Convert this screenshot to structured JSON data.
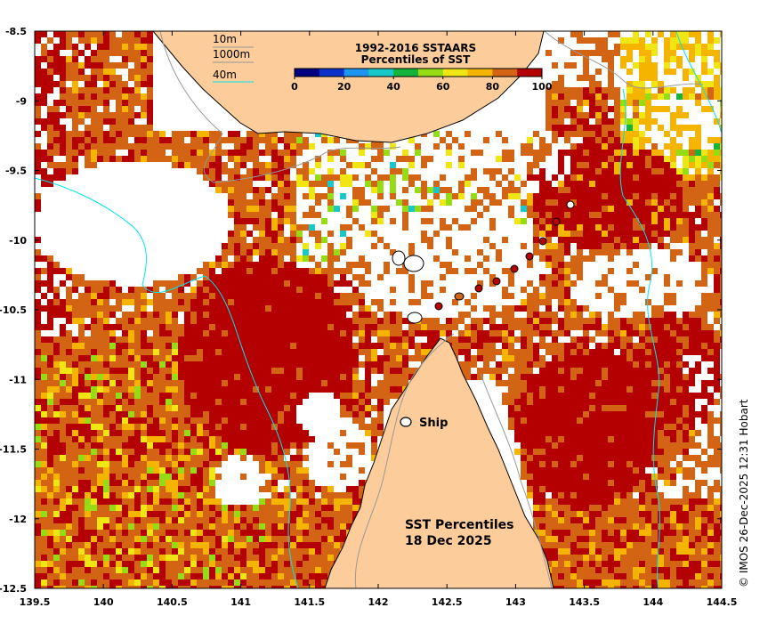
{
  "map": {
    "title_line1": "SST Percentiles",
    "title_line2": "18 Dec 2025",
    "ship_label": "Ship",
    "credit": "© IMOS 26-Dec-2025 12:31 Hobart",
    "x_ticks": [
      "139.5",
      "140",
      "140.5",
      "141",
      "141.5",
      "142",
      "142.5",
      "143",
      "143.5",
      "144",
      "144.5"
    ],
    "y_ticks": [
      "-8.5",
      "-9",
      "-9.5",
      "-10",
      "-10.5",
      "-11",
      "-11.5",
      "-12",
      "-12.5"
    ],
    "lon_range": [
      139.5,
      144.5
    ],
    "lat_range": [
      -12.5,
      -8.5
    ],
    "land_color": "#fccc9a",
    "contour_legend": {
      "items": [
        {
          "label": "10m",
          "color": "#999999"
        },
        {
          "label": "1000m",
          "color": "#999999"
        },
        {
          "label": "40m",
          "color": "#00e5ee"
        }
      ]
    },
    "colorbar": {
      "title_line1": "1992-2016 SSTAARS",
      "title_line2": "Percentiles of SST",
      "labels": [
        "0",
        "20",
        "40",
        "60",
        "80",
        "100"
      ],
      "colors": [
        "#000080",
        "#0a32c8",
        "#1e96f0",
        "#19c8c8",
        "#14b43c",
        "#96dc14",
        "#f0e614",
        "#f5b400",
        "#d26414",
        "#b40000"
      ]
    }
  }
}
